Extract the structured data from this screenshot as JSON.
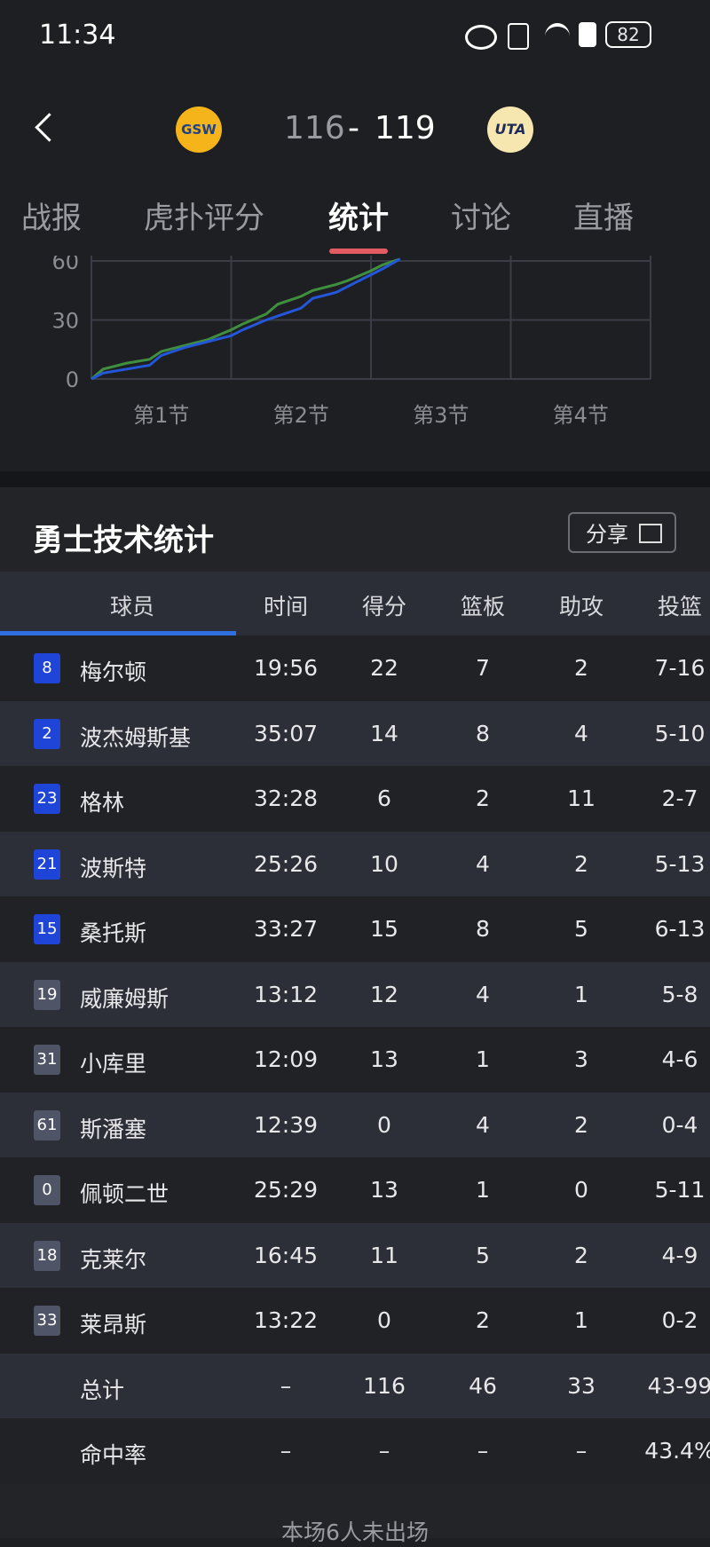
{
  "status_bar": {
    "time": "11:34",
    "battery": "82"
  },
  "header": {
    "home_logo": "GSW",
    "home_score": "116",
    "separator": "-",
    "away_score": "119",
    "away_logo": "UTA"
  },
  "tabs": [
    "战报",
    "虎扑评分",
    "统计",
    "讨论",
    "直播"
  ],
  "active_tab": 2,
  "score_chart": {
    "ylim": [
      0,
      60
    ],
    "yticks": [
      0,
      30,
      60
    ],
    "xlim": [
      0,
      48
    ],
    "quarters": [
      "第1节",
      "第2节",
      "第3节",
      "第4节"
    ],
    "series": [
      {
        "color": "#3f8f3f",
        "x": [
          0,
          1,
          3,
          5,
          6,
          8,
          10,
          12,
          13,
          15,
          16,
          18,
          19,
          21,
          22,
          24,
          25,
          26.5
        ],
        "values": [
          0,
          5,
          8,
          10,
          14,
          17,
          20,
          25,
          28,
          33,
          38,
          42,
          45,
          48,
          50,
          55,
          58,
          61
        ]
      },
      {
        "color": "#2356d8",
        "x": [
          0,
          1,
          3,
          5,
          6,
          8,
          10,
          12,
          13,
          15,
          16,
          18,
          19,
          21,
          22,
          24,
          25,
          26.5
        ],
        "values": [
          0,
          3,
          5,
          7,
          12,
          16,
          19,
          22,
          25,
          30,
          32,
          36,
          41,
          44,
          47,
          53,
          56,
          61
        ]
      }
    ]
  },
  "stats": {
    "title": "勇士技术统计",
    "share": "分享",
    "columns": [
      "球员",
      "时间",
      "得分",
      "篮板",
      "助攻",
      "投篮"
    ],
    "players": [
      {
        "number": "8",
        "name": "梅尔顿",
        "starter": true,
        "stats": [
          "19:56",
          "22",
          "7",
          "2",
          "7-16"
        ]
      },
      {
        "number": "2",
        "name": "波杰姆斯基",
        "starter": true,
        "stats": [
          "35:07",
          "14",
          "8",
          "4",
          "5-10"
        ]
      },
      {
        "number": "23",
        "name": "格林",
        "starter": true,
        "stats": [
          "32:28",
          "6",
          "2",
          "11",
          "2-7"
        ]
      },
      {
        "number": "21",
        "name": "波斯特",
        "starter": true,
        "stats": [
          "25:26",
          "10",
          "4",
          "2",
          "5-13"
        ]
      },
      {
        "number": "15",
        "name": "桑托斯",
        "starter": true,
        "stats": [
          "33:27",
          "15",
          "8",
          "5",
          "6-13"
        ]
      },
      {
        "number": "19",
        "name": "威廉姆斯",
        "starter": false,
        "stats": [
          "13:12",
          "12",
          "4",
          "1",
          "5-8"
        ]
      },
      {
        "number": "31",
        "name": "小库里",
        "starter": false,
        "stats": [
          "12:09",
          "13",
          "1",
          "3",
          "4-6"
        ]
      },
      {
        "number": "61",
        "name": "斯潘塞",
        "starter": false,
        "stats": [
          "12:39",
          "0",
          "4",
          "2",
          "0-4"
        ]
      },
      {
        "number": "0",
        "name": "佩顿二世",
        "starter": false,
        "stats": [
          "25:29",
          "13",
          "1",
          "0",
          "5-11"
        ]
      },
      {
        "number": "18",
        "name": "克莱尔",
        "starter": false,
        "stats": [
          "16:45",
          "11",
          "5",
          "2",
          "4-9"
        ]
      },
      {
        "number": "33",
        "name": "莱昂斯",
        "starter": false,
        "stats": [
          "13:22",
          "0",
          "2",
          "1",
          "0-2"
        ]
      }
    ],
    "summary": [
      {
        "label": "总计",
        "stats": [
          "–",
          "116",
          "46",
          "33",
          "43-99"
        ]
      },
      {
        "label": "命中率",
        "stats": [
          "–",
          "–",
          "–",
          "–",
          "43.4%"
        ]
      }
    ],
    "footer": "本场6人未出场"
  }
}
